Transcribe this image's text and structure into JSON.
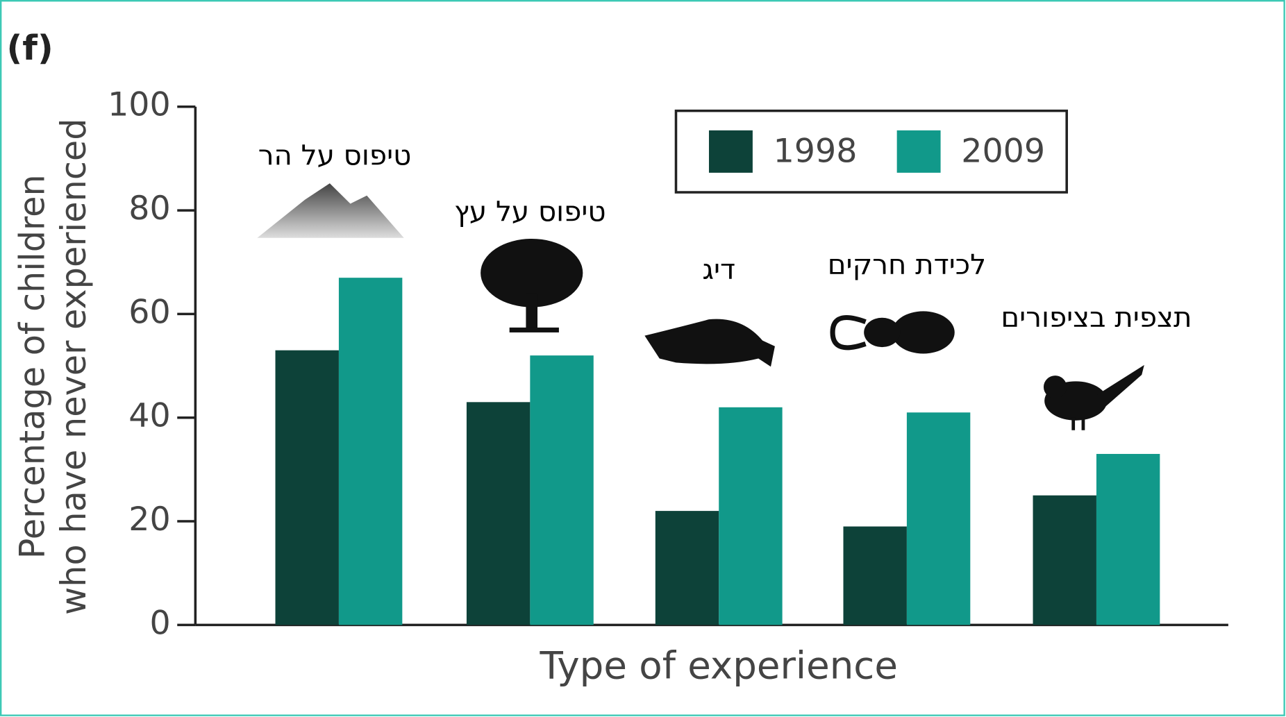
{
  "chart_data": {
    "type": "bar",
    "panel_label": "(f)",
    "y_label": [
      "Percentage of children",
      "who have never experienced"
    ],
    "x_label": "Type of experience",
    "categories": [
      "טיפוס על הר",
      "טיפוס על עץ",
      "דיג",
      "לכידת חרקים",
      "תצפית בציפורים"
    ],
    "series": [
      {
        "name": "1998",
        "color": "#0d4239",
        "values": [
          53,
          43,
          22,
          19,
          25
        ]
      },
      {
        "name": "2009",
        "color": "#11998a",
        "values": [
          67,
          52,
          42,
          41,
          33
        ]
      }
    ],
    "ylim": [
      0,
      100
    ],
    "yticks": [
      0,
      20,
      40,
      60,
      80,
      100
    ]
  }
}
